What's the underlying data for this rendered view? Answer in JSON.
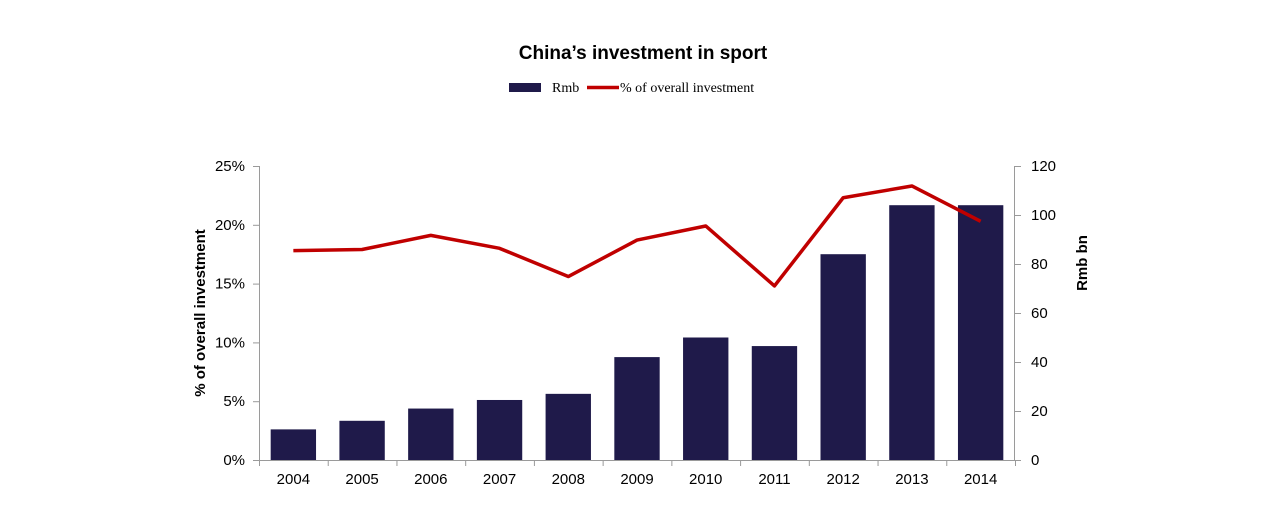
{
  "chart_data": {
    "type": "bar",
    "title": "China’s investment in sport",
    "categories": [
      "2004",
      "2005",
      "2006",
      "2007",
      "2008",
      "2009",
      "2010",
      "2011",
      "2012",
      "2013",
      "2014"
    ],
    "series": [
      {
        "name": "Rmb",
        "type": "bar",
        "axis": "right",
        "color": "#1f1a4a",
        "values": [
          12.5,
          16,
          21,
          24.5,
          27,
          42,
          50,
          46.5,
          84,
          104,
          104
        ]
      },
      {
        "name": "% of overall investment",
        "type": "line",
        "axis": "left",
        "color": "#c00000",
        "values": [
          17.8,
          17.9,
          19.1,
          18.0,
          15.6,
          18.7,
          19.9,
          14.8,
          22.3,
          23.3,
          20.3
        ]
      }
    ],
    "y_left": {
      "label": "% of overall investment",
      "ylim": [
        0,
        25
      ],
      "ticks": [
        0,
        5,
        10,
        15,
        20,
        25
      ],
      "tick_labels": [
        "0%",
        "5%",
        "10%",
        "15%",
        "20%",
        "25%"
      ]
    },
    "y_right": {
      "label": "Rmb bn",
      "ylim": [
        0,
        120
      ],
      "ticks": [
        0,
        20,
        40,
        60,
        80,
        100,
        120
      ],
      "tick_labels": [
        "0",
        "20",
        "40",
        "60",
        "80",
        "100",
        "120"
      ]
    },
    "legend_position": "top-center",
    "grid": false
  }
}
